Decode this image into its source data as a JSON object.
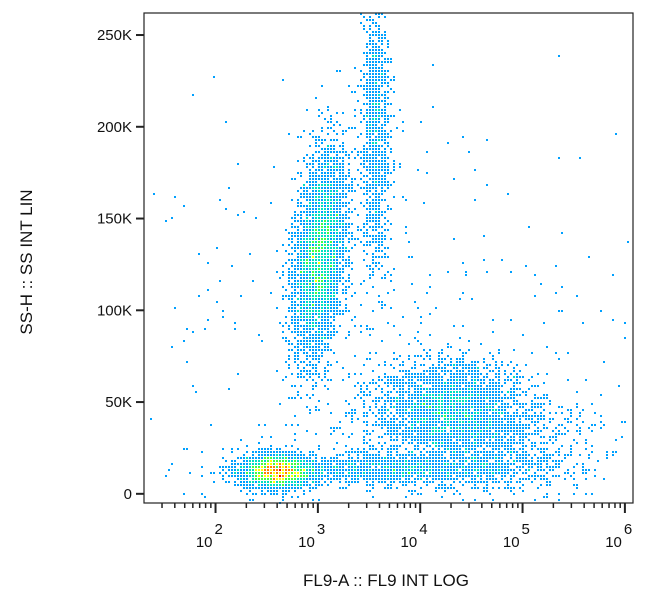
{
  "chart_data": {
    "type": "scatter",
    "style": "density-colored dot plot (flow cytometry)",
    "xlabel": "FL9-A :: FL9 INT LOG",
    "ylabel": "SS-H :: SS INT LIN",
    "x_scale": "log",
    "y_scale": "linear",
    "xlim": [
      20,
      1200000
    ],
    "ylim": [
      -5000,
      262000
    ],
    "x_ticks": [
      {
        "value": 100,
        "base": "10",
        "exp": "2"
      },
      {
        "value": 1000,
        "base": "10",
        "exp": "3"
      },
      {
        "value": 10000,
        "base": "10",
        "exp": "4"
      },
      {
        "value": 100000,
        "base": "10",
        "exp": "5"
      },
      {
        "value": 1000000,
        "base": "10",
        "exp": "6"
      }
    ],
    "y_ticks": [
      {
        "value": 0,
        "label": "0"
      },
      {
        "value": 50000,
        "label": "50K"
      },
      {
        "value": 100000,
        "label": "100K"
      },
      {
        "value": 150000,
        "label": "150K"
      },
      {
        "value": 200000,
        "label": "200K"
      },
      {
        "value": 250000,
        "label": "250K"
      }
    ],
    "grid": false,
    "colormap": [
      "#0000ff",
      "#00a0ff",
      "#00e0c0",
      "#40ff40",
      "#ffff00",
      "#ff8000",
      "#ff0000"
    ],
    "populations": [
      {
        "x_center": 400,
        "x_spread_decades": 0.17,
        "y_center": 12000,
        "y_spread": 4500,
        "count": 2600,
        "peak_density": 1.0
      },
      {
        "x_center": 1050,
        "x_spread_decades": 0.12,
        "y_center": 130000,
        "y_spread": 28000,
        "count": 4200,
        "peak_density": 0.85,
        "tilt": 1.6e-06
      },
      {
        "x_center": 3700,
        "x_spread_decades": 0.07,
        "y_center": 195000,
        "y_spread": 38000,
        "count": 1100,
        "peak_density": 0.15
      },
      {
        "x_center": 20000,
        "x_spread_decades": 0.35,
        "y_center": 48000,
        "y_spread": 12000,
        "count": 2600,
        "peak_density": 0.35
      },
      {
        "x_center": 6000,
        "x_spread_decades": 0.75,
        "y_center": 13000,
        "y_spread": 4000,
        "count": 1500,
        "peak_density": 0.2
      },
      {
        "x_center": 30000,
        "x_spread_decades": 0.55,
        "y_center": 28000,
        "y_spread": 14000,
        "count": 1400,
        "peak_density": 0.12
      },
      {
        "x_center": 5000,
        "x_spread_decades": 1.2,
        "y_center": 90000,
        "y_spread": 60000,
        "count": 380,
        "peak_density": 0.03
      }
    ]
  }
}
